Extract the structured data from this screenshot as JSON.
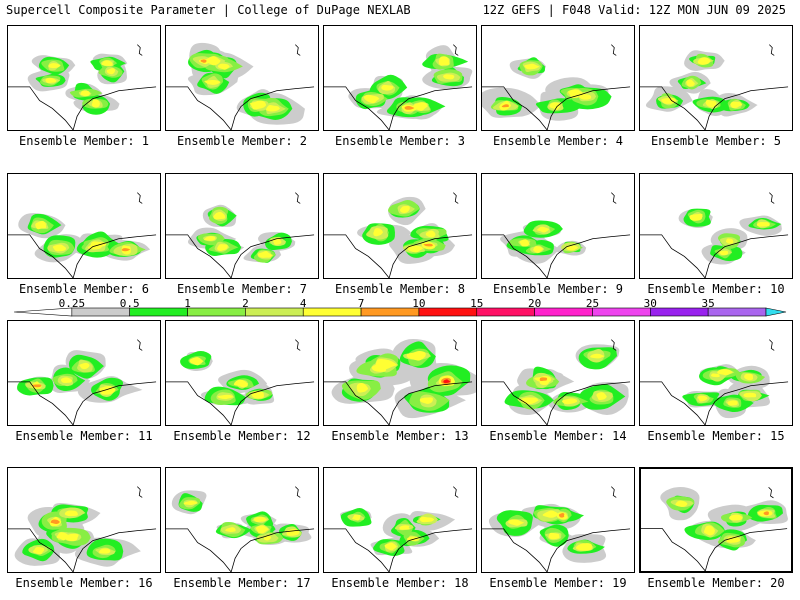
{
  "header": {
    "left": "Supercell Composite Parameter | College of DuPage NEXLAB",
    "right": "12Z GEFS | F048 Valid: 12Z MON JUN 09 2025"
  },
  "colorbar": {
    "ticks": [
      "0.25",
      "0.5",
      "1",
      "2",
      "4",
      "7",
      "10",
      "15",
      "20",
      "25",
      "30",
      "35"
    ],
    "colors": [
      "#ffffff",
      "#cccccc",
      "#22ee22",
      "#88ee44",
      "#ccee55",
      "#ffff33",
      "#ff9922",
      "#ff1111",
      "#ff1166",
      "#ff22cc",
      "#ee44ee",
      "#9922ee",
      "#aa66ee",
      "#33ddee"
    ]
  },
  "panels": [
    {
      "label": "Ensemble Member: 1",
      "member": 1,
      "intensity": "low"
    },
    {
      "label": "Ensemble Member: 2",
      "member": 2,
      "intensity": "medium"
    },
    {
      "label": "Ensemble Member: 3",
      "member": 3,
      "intensity": "medium"
    },
    {
      "label": "Ensemble Member: 4",
      "member": 4,
      "intensity": "medium"
    },
    {
      "label": "Ensemble Member: 5",
      "member": 5,
      "intensity": "low"
    },
    {
      "label": "Ensemble Member: 6",
      "member": 6,
      "intensity": "medium"
    },
    {
      "label": "Ensemble Member: 7",
      "member": 7,
      "intensity": "low"
    },
    {
      "label": "Ensemble Member: 8",
      "member": 8,
      "intensity": "medium"
    },
    {
      "label": "Ensemble Member: 9",
      "member": 9,
      "intensity": "low"
    },
    {
      "label": "Ensemble Member: 10",
      "member": 10,
      "intensity": "low"
    },
    {
      "label": "Ensemble Member: 11",
      "member": 11,
      "intensity": "medium"
    },
    {
      "label": "Ensemble Member: 12",
      "member": 12,
      "intensity": "low"
    },
    {
      "label": "Ensemble Member: 13",
      "member": 13,
      "intensity": "high"
    },
    {
      "label": "Ensemble Member: 14",
      "member": 14,
      "intensity": "medium"
    },
    {
      "label": "Ensemble Member: 15",
      "member": 15,
      "intensity": "low"
    },
    {
      "label": "Ensemble Member: 16",
      "member": 16,
      "intensity": "medium"
    },
    {
      "label": "Ensemble Member: 17",
      "member": 17,
      "intensity": "low"
    },
    {
      "label": "Ensemble Member: 18",
      "member": 18,
      "intensity": "low"
    },
    {
      "label": "Ensemble Member: 19",
      "member": 19,
      "intensity": "medium"
    },
    {
      "label": "Ensemble Member: 20",
      "member": 20,
      "intensity": "medium",
      "selected": true
    }
  ]
}
